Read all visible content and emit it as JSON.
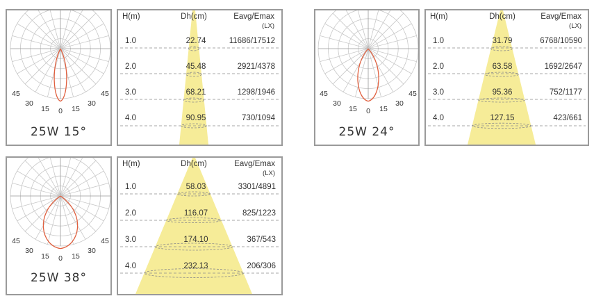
{
  "colors": {
    "beam": "#f6ec98",
    "curve": "#e0603f",
    "grid": "#c8c8c8",
    "border": "#9a9a9a",
    "dash": "#8a8a8a"
  },
  "groups": [
    {
      "caption": "25W 15°",
      "angles": {
        "l45": "45",
        "l30": "30",
        "l15": "15",
        "zero": "0",
        "r15": "15",
        "r30": "30",
        "r45": "45"
      },
      "headers": {
        "h": "H(m)",
        "dh": "Dh(cm)",
        "e": "Eavg/Emax",
        "unit": "(LX)"
      },
      "rows": [
        {
          "h": "1.0",
          "dh": "22.74",
          "e": "11686/17512"
        },
        {
          "h": "2.0",
          "dh": "45.48",
          "e": "2921/4378"
        },
        {
          "h": "3.0",
          "dh": "68.21",
          "e": "1298/1946"
        },
        {
          "h": "4.0",
          "dh": "90.95",
          "e": "730/1094"
        }
      ]
    },
    {
      "caption": "25W 24°",
      "angles": {
        "l45": "45",
        "l30": "30",
        "l15": "15",
        "zero": "0",
        "r15": "15",
        "r30": "30",
        "r45": "45"
      },
      "headers": {
        "h": "H(m)",
        "dh": "Dh(cm)",
        "e": "Eavg/Emax",
        "unit": "(LX)"
      },
      "rows": [
        {
          "h": "1.0",
          "dh": "31.79",
          "e": "6768/10590"
        },
        {
          "h": "2.0",
          "dh": "63.58",
          "e": "1692/2647"
        },
        {
          "h": "3.0",
          "dh": "95.36",
          "e": "752/1177"
        },
        {
          "h": "4.0",
          "dh": "127.15",
          "e": "423/661"
        }
      ]
    },
    {
      "caption": "25W 38°",
      "angles": {
        "l45": "45",
        "l30": "30",
        "l15": "15",
        "zero": "0",
        "r15": "15",
        "r30": "30",
        "r45": "45"
      },
      "headers": {
        "h": "H(m)",
        "dh": "Dh(cm)",
        "e": "Eavg/Emax",
        "unit": "(LX)"
      },
      "rows": [
        {
          "h": "1.0",
          "dh": "58.03",
          "e": "3301/4891"
        },
        {
          "h": "2.0",
          "dh": "116.07",
          "e": "825/1223"
        },
        {
          "h": "3.0",
          "dh": "174.10",
          "e": "367/543"
        },
        {
          "h": "4.0",
          "dh": "232.13",
          "e": "206/306"
        }
      ]
    }
  ]
}
